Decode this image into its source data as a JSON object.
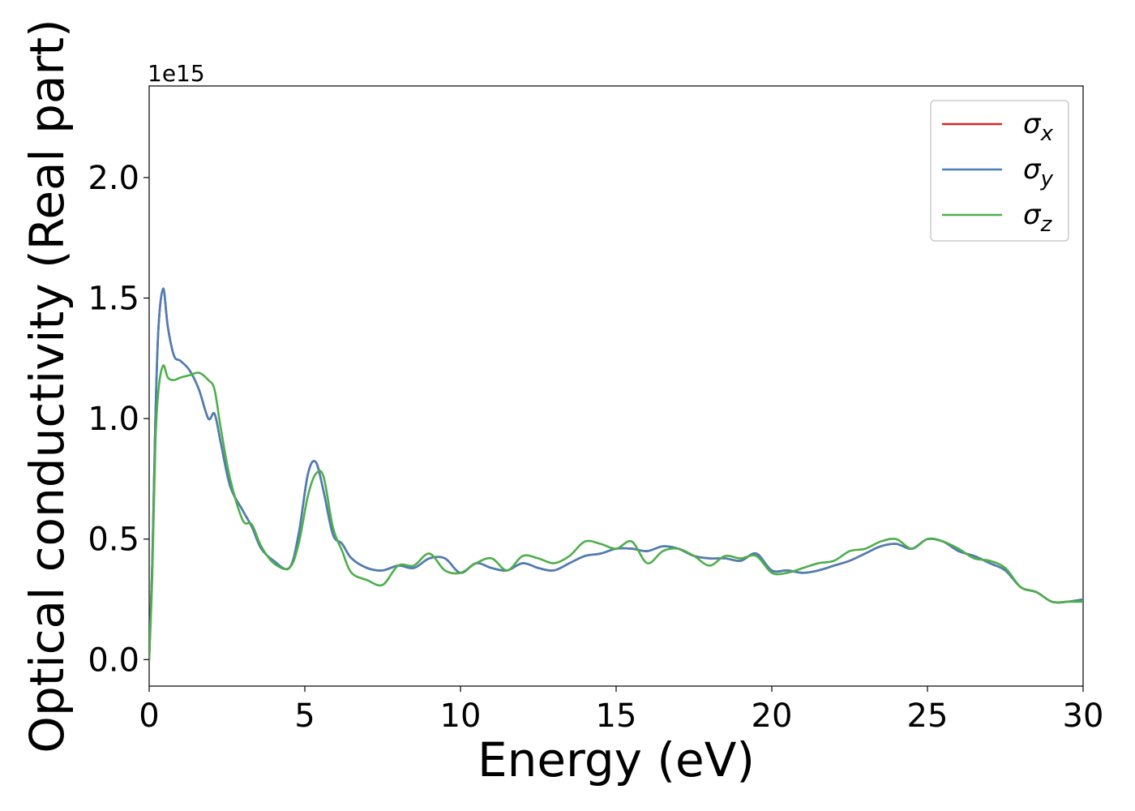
{
  "chart_data": {
    "type": "line",
    "xlabel": "Energy (eV)",
    "ylabel": "Optical conductivity (Real part)",
    "y_offset_label": "1e15",
    "xlim": [
      0,
      30
    ],
    "ylim": [
      -0.11,
      2.38
    ],
    "xticks": [
      0,
      5,
      10,
      15,
      20,
      25,
      30
    ],
    "xtick_labels": [
      "0",
      "5",
      "10",
      "15",
      "20",
      "25",
      "30"
    ],
    "yticks": [
      0.0,
      0.5,
      1.0,
      1.5,
      2.0
    ],
    "ytick_labels": [
      "0.0",
      "0.5",
      "1.0",
      "1.5",
      "2.0"
    ],
    "grid": false,
    "legend_position": "top-right",
    "series": [
      {
        "name": "σx",
        "name_main": "σ",
        "name_sub": "x",
        "color": "#d62728",
        "x": [
          0,
          0.1,
          0.2,
          0.3,
          0.45,
          0.6,
          0.8,
          1.0,
          1.3,
          1.6,
          1.9,
          2.1,
          2.3,
          2.6,
          3.0,
          3.3,
          3.6,
          4.0,
          4.5,
          4.8,
          5.1,
          5.35,
          5.6,
          5.9,
          6.2,
          6.5,
          7.0,
          7.5,
          8.0,
          8.5,
          9.0,
          9.5,
          10.0,
          10.5,
          11.0,
          11.5,
          12.0,
          12.5,
          13.0,
          13.5,
          14.0,
          14.5,
          15.0,
          15.5,
          16.0,
          16.5,
          17.0,
          17.5,
          18.0,
          18.5,
          19.0,
          19.5,
          20.0,
          20.5,
          21.0,
          21.5,
          22.0,
          22.5,
          23.0,
          23.5,
          24.0,
          24.5,
          25.0,
          25.5,
          26.0,
          26.5,
          27.0,
          27.5,
          28.0,
          28.5,
          29.0,
          29.5,
          30.0
        ],
        "y": [
          0.0,
          0.4,
          1.0,
          1.38,
          1.54,
          1.38,
          1.26,
          1.24,
          1.2,
          1.12,
          1.0,
          1.02,
          0.9,
          0.72,
          0.62,
          0.55,
          0.46,
          0.41,
          0.38,
          0.52,
          0.77,
          0.82,
          0.7,
          0.52,
          0.48,
          0.42,
          0.38,
          0.37,
          0.39,
          0.38,
          0.42,
          0.42,
          0.36,
          0.4,
          0.38,
          0.37,
          0.4,
          0.38,
          0.37,
          0.4,
          0.43,
          0.44,
          0.46,
          0.46,
          0.45,
          0.47,
          0.46,
          0.43,
          0.42,
          0.42,
          0.41,
          0.44,
          0.37,
          0.37,
          0.36,
          0.37,
          0.39,
          0.41,
          0.44,
          0.47,
          0.48,
          0.46,
          0.5,
          0.49,
          0.45,
          0.43,
          0.4,
          0.37,
          0.3,
          0.28,
          0.24,
          0.24,
          0.25
        ]
      },
      {
        "name": "σy",
        "name_main": "σ",
        "name_sub": "y",
        "color": "#4a7fb5",
        "x": [
          0,
          0.1,
          0.2,
          0.3,
          0.45,
          0.6,
          0.8,
          1.0,
          1.3,
          1.6,
          1.9,
          2.1,
          2.3,
          2.6,
          3.0,
          3.3,
          3.6,
          4.0,
          4.5,
          4.8,
          5.1,
          5.35,
          5.6,
          5.9,
          6.2,
          6.5,
          7.0,
          7.5,
          8.0,
          8.5,
          9.0,
          9.5,
          10.0,
          10.5,
          11.0,
          11.5,
          12.0,
          12.5,
          13.0,
          13.5,
          14.0,
          14.5,
          15.0,
          15.5,
          16.0,
          16.5,
          17.0,
          17.5,
          18.0,
          18.5,
          19.0,
          19.5,
          20.0,
          20.5,
          21.0,
          21.5,
          22.0,
          22.5,
          23.0,
          23.5,
          24.0,
          24.5,
          25.0,
          25.5,
          26.0,
          26.5,
          27.0,
          27.5,
          28.0,
          28.5,
          29.0,
          29.5,
          30.0
        ],
        "y": [
          0.0,
          0.4,
          1.0,
          1.38,
          1.54,
          1.38,
          1.26,
          1.24,
          1.2,
          1.12,
          1.0,
          1.02,
          0.9,
          0.72,
          0.62,
          0.55,
          0.46,
          0.41,
          0.38,
          0.52,
          0.77,
          0.82,
          0.7,
          0.52,
          0.48,
          0.42,
          0.38,
          0.37,
          0.39,
          0.38,
          0.42,
          0.42,
          0.36,
          0.4,
          0.38,
          0.37,
          0.4,
          0.38,
          0.37,
          0.4,
          0.43,
          0.44,
          0.46,
          0.46,
          0.45,
          0.47,
          0.46,
          0.43,
          0.42,
          0.42,
          0.41,
          0.44,
          0.37,
          0.37,
          0.36,
          0.37,
          0.39,
          0.41,
          0.44,
          0.47,
          0.48,
          0.46,
          0.5,
          0.49,
          0.45,
          0.43,
          0.4,
          0.37,
          0.3,
          0.28,
          0.24,
          0.24,
          0.25
        ]
      },
      {
        "name": "σz",
        "name_main": "σ",
        "name_sub": "z",
        "color": "#4daf4a",
        "x": [
          0,
          0.1,
          0.2,
          0.3,
          0.45,
          0.6,
          0.8,
          1.0,
          1.3,
          1.6,
          1.9,
          2.1,
          2.3,
          2.6,
          3.0,
          3.3,
          3.6,
          4.0,
          4.5,
          4.8,
          5.1,
          5.35,
          5.6,
          5.9,
          6.2,
          6.5,
          7.0,
          7.5,
          8.0,
          8.5,
          9.0,
          9.5,
          10.0,
          10.5,
          11.0,
          11.5,
          12.0,
          12.5,
          13.0,
          13.5,
          14.0,
          14.5,
          15.0,
          15.5,
          16.0,
          16.5,
          17.0,
          17.5,
          18.0,
          18.5,
          19.0,
          19.5,
          20.0,
          20.5,
          21.0,
          21.5,
          22.0,
          22.5,
          23.0,
          23.5,
          24.0,
          24.5,
          25.0,
          25.5,
          26.0,
          26.5,
          27.0,
          27.5,
          28.0,
          28.5,
          29.0,
          29.5,
          30.0
        ],
        "y": [
          0.0,
          0.35,
          0.9,
          1.12,
          1.22,
          1.17,
          1.16,
          1.17,
          1.18,
          1.19,
          1.16,
          1.12,
          0.96,
          0.75,
          0.58,
          0.56,
          0.47,
          0.4,
          0.38,
          0.48,
          0.68,
          0.77,
          0.76,
          0.55,
          0.45,
          0.36,
          0.33,
          0.31,
          0.39,
          0.39,
          0.44,
          0.37,
          0.36,
          0.4,
          0.42,
          0.37,
          0.43,
          0.42,
          0.4,
          0.43,
          0.49,
          0.48,
          0.46,
          0.49,
          0.4,
          0.45,
          0.46,
          0.43,
          0.39,
          0.43,
          0.42,
          0.43,
          0.36,
          0.36,
          0.38,
          0.4,
          0.41,
          0.45,
          0.46,
          0.49,
          0.5,
          0.46,
          0.5,
          0.49,
          0.46,
          0.42,
          0.41,
          0.38,
          0.3,
          0.28,
          0.24,
          0.24,
          0.24
        ]
      }
    ]
  }
}
